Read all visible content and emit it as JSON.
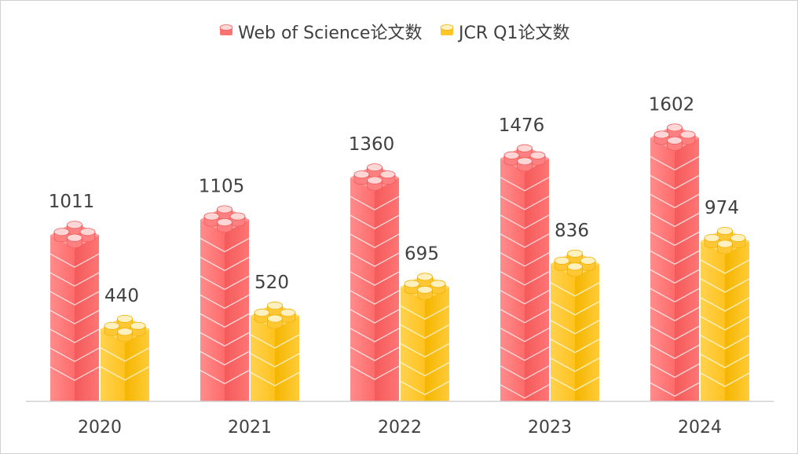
{
  "chart_data": {
    "type": "bar",
    "categories": [
      "2020",
      "2021",
      "2022",
      "2023",
      "2024"
    ],
    "series": [
      {
        "name": "Web of Science论文数",
        "values": [
          1011,
          1105,
          1360,
          1476,
          1602
        ],
        "color": "#ff7373"
      },
      {
        "name": "JCR Q1论文数",
        "values": [
          440,
          520,
          695,
          836,
          974
        ],
        "color": "#ffc627"
      }
    ],
    "ylim": [
      0,
      1800
    ],
    "legend": "top-center",
    "grid": false
  }
}
